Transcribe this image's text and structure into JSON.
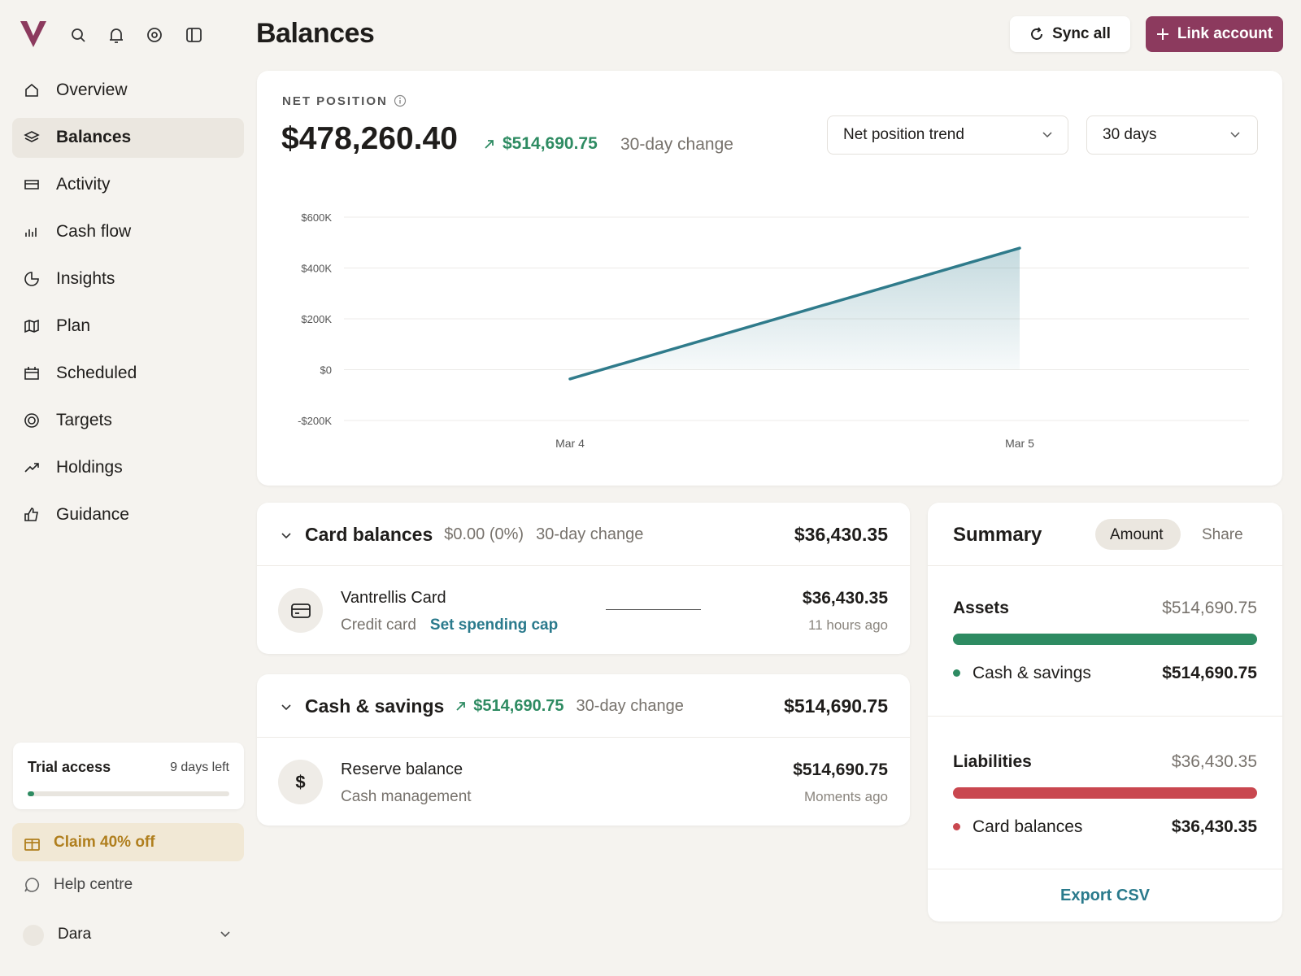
{
  "sidebar": {
    "nav": [
      "Overview",
      "Balances",
      "Activity",
      "Cash flow",
      "Insights",
      "Plan",
      "Scheduled",
      "Targets",
      "Holdings",
      "Guidance"
    ],
    "trial": {
      "title": "Trial access",
      "days_left": "9 days left"
    },
    "promo": "Claim 40% off",
    "help": "Help centre",
    "user": "Dara"
  },
  "header": {
    "title": "Balances",
    "sync": "Sync all",
    "link": "Link account"
  },
  "net": {
    "label": "NET POSITION",
    "value": "$478,260.40",
    "change": "$514,690.75",
    "change_label": "30-day change",
    "metric_select": "Net position trend",
    "range_select": "30 days"
  },
  "chart_data": {
    "type": "line",
    "categories": [
      "Mar 4",
      "Mar 5"
    ],
    "series": [
      {
        "color": "#2f7b8b",
        "values": [
          -36430.35,
          478260.4
        ]
      }
    ],
    "ylim": [
      -200000,
      600000
    ],
    "yticks": [
      {
        "value": -200000,
        "label": "-$200K"
      },
      {
        "value": 0,
        "label": "$0"
      },
      {
        "value": 200000,
        "label": "$200K"
      },
      {
        "value": 400000,
        "label": "$400K"
      },
      {
        "value": 600000,
        "label": "$600K"
      }
    ],
    "grid": true,
    "area_fill": true
  },
  "groups": [
    {
      "title": "Card balances",
      "change": "$0.00 (0%)",
      "change_label": "30-day change",
      "total": "$36,430.35",
      "account": {
        "name": "Vantrellis Card",
        "kind": "Credit card",
        "action": "Set spending cap",
        "amount": "$36,430.35",
        "updated": "11 hours ago"
      }
    },
    {
      "title": "Cash & savings",
      "change": "$514,690.75",
      "change_label": "30-day change",
      "total": "$514,690.75",
      "account": {
        "name": "Reserve balance",
        "kind": "Cash management",
        "icon": "$",
        "amount": "$514,690.75",
        "updated": "Moments ago"
      }
    }
  ],
  "summary": {
    "title": "Summary",
    "tabs": [
      "Amount",
      "Share"
    ],
    "assets": {
      "title": "Assets",
      "total": "$514,690.75",
      "item": "Cash & savings",
      "amount": "$514,690.75"
    },
    "liabilities": {
      "title": "Liabilities",
      "total": "$36,430.35",
      "item": "Card balances",
      "amount": "$36,430.35"
    },
    "export": "Export CSV"
  }
}
